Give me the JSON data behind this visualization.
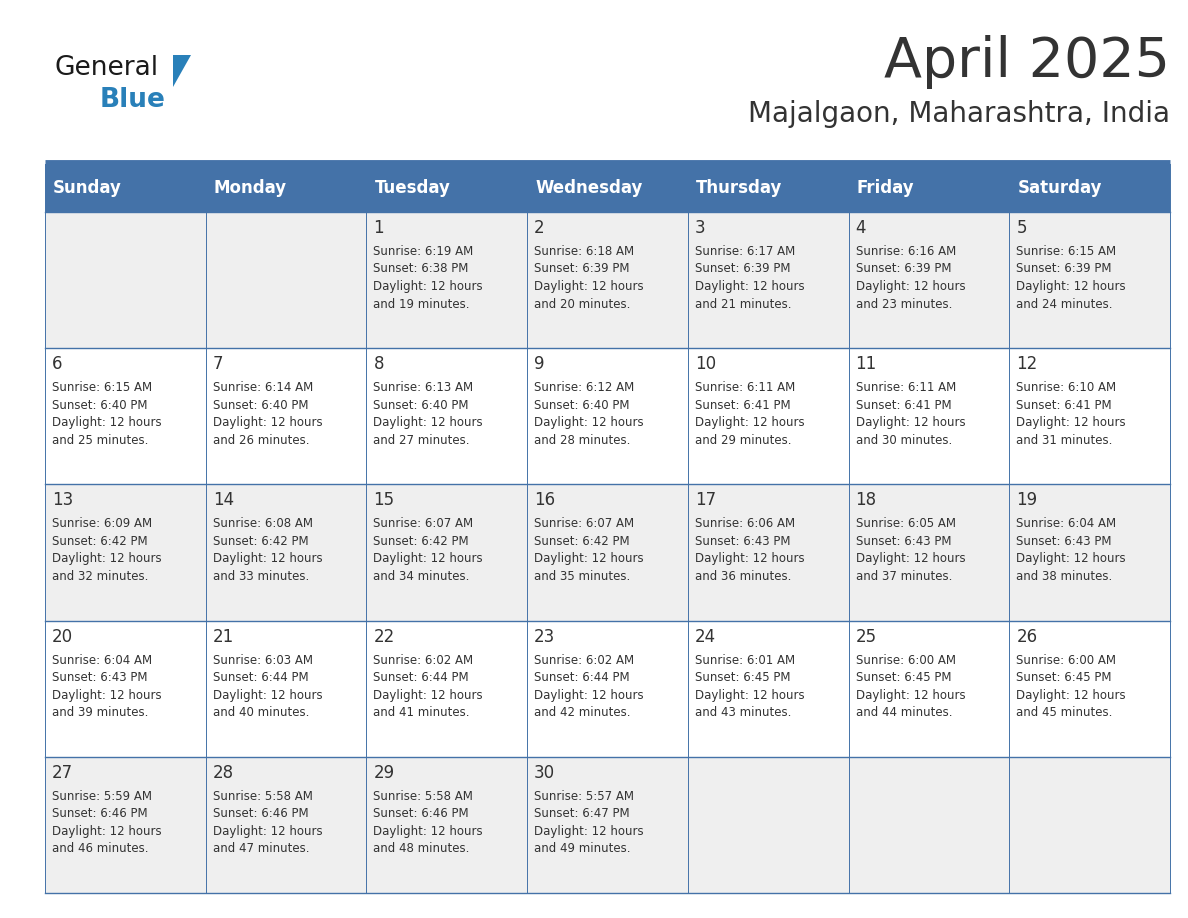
{
  "title": "April 2025",
  "subtitle": "Majalgaon, Maharashtra, India",
  "header_bg": "#4472A8",
  "header_text": "#ffffff",
  "cell_bg_odd": "#efefef",
  "cell_bg_even": "#ffffff",
  "grid_line_color": "#4472A8",
  "text_color": "#333333",
  "days_of_week": [
    "Sunday",
    "Monday",
    "Tuesday",
    "Wednesday",
    "Thursday",
    "Friday",
    "Saturday"
  ],
  "weeks": [
    [
      {
        "day": "",
        "sunrise": "",
        "sunset": "",
        "daylight_min": 0
      },
      {
        "day": "",
        "sunrise": "",
        "sunset": "",
        "daylight_min": 0
      },
      {
        "day": "1",
        "sunrise": "6:19 AM",
        "sunset": "6:38 PM",
        "daylight_min": 19
      },
      {
        "day": "2",
        "sunrise": "6:18 AM",
        "sunset": "6:39 PM",
        "daylight_min": 20
      },
      {
        "day": "3",
        "sunrise": "6:17 AM",
        "sunset": "6:39 PM",
        "daylight_min": 21
      },
      {
        "day": "4",
        "sunrise": "6:16 AM",
        "sunset": "6:39 PM",
        "daylight_min": 23
      },
      {
        "day": "5",
        "sunrise": "6:15 AM",
        "sunset": "6:39 PM",
        "daylight_min": 24
      }
    ],
    [
      {
        "day": "6",
        "sunrise": "6:15 AM",
        "sunset": "6:40 PM",
        "daylight_min": 25
      },
      {
        "day": "7",
        "sunrise": "6:14 AM",
        "sunset": "6:40 PM",
        "daylight_min": 26
      },
      {
        "day": "8",
        "sunrise": "6:13 AM",
        "sunset": "6:40 PM",
        "daylight_min": 27
      },
      {
        "day": "9",
        "sunrise": "6:12 AM",
        "sunset": "6:40 PM",
        "daylight_min": 28
      },
      {
        "day": "10",
        "sunrise": "6:11 AM",
        "sunset": "6:41 PM",
        "daylight_min": 29
      },
      {
        "day": "11",
        "sunrise": "6:11 AM",
        "sunset": "6:41 PM",
        "daylight_min": 30
      },
      {
        "day": "12",
        "sunrise": "6:10 AM",
        "sunset": "6:41 PM",
        "daylight_min": 31
      }
    ],
    [
      {
        "day": "13",
        "sunrise": "6:09 AM",
        "sunset": "6:42 PM",
        "daylight_min": 32
      },
      {
        "day": "14",
        "sunrise": "6:08 AM",
        "sunset": "6:42 PM",
        "daylight_min": 33
      },
      {
        "day": "15",
        "sunrise": "6:07 AM",
        "sunset": "6:42 PM",
        "daylight_min": 34
      },
      {
        "day": "16",
        "sunrise": "6:07 AM",
        "sunset": "6:42 PM",
        "daylight_min": 35
      },
      {
        "day": "17",
        "sunrise": "6:06 AM",
        "sunset": "6:43 PM",
        "daylight_min": 36
      },
      {
        "day": "18",
        "sunrise": "6:05 AM",
        "sunset": "6:43 PM",
        "daylight_min": 37
      },
      {
        "day": "19",
        "sunrise": "6:04 AM",
        "sunset": "6:43 PM",
        "daylight_min": 38
      }
    ],
    [
      {
        "day": "20",
        "sunrise": "6:04 AM",
        "sunset": "6:43 PM",
        "daylight_min": 39
      },
      {
        "day": "21",
        "sunrise": "6:03 AM",
        "sunset": "6:44 PM",
        "daylight_min": 40
      },
      {
        "day": "22",
        "sunrise": "6:02 AM",
        "sunset": "6:44 PM",
        "daylight_min": 41
      },
      {
        "day": "23",
        "sunrise": "6:02 AM",
        "sunset": "6:44 PM",
        "daylight_min": 42
      },
      {
        "day": "24",
        "sunrise": "6:01 AM",
        "sunset": "6:45 PM",
        "daylight_min": 43
      },
      {
        "day": "25",
        "sunrise": "6:00 AM",
        "sunset": "6:45 PM",
        "daylight_min": 44
      },
      {
        "day": "26",
        "sunrise": "6:00 AM",
        "sunset": "6:45 PM",
        "daylight_min": 45
      }
    ],
    [
      {
        "day": "27",
        "sunrise": "5:59 AM",
        "sunset": "6:46 PM",
        "daylight_min": 46
      },
      {
        "day": "28",
        "sunrise": "5:58 AM",
        "sunset": "6:46 PM",
        "daylight_min": 47
      },
      {
        "day": "29",
        "sunrise": "5:58 AM",
        "sunset": "6:46 PM",
        "daylight_min": 48
      },
      {
        "day": "30",
        "sunrise": "5:57 AM",
        "sunset": "6:47 PM",
        "daylight_min": 49
      },
      {
        "day": "",
        "sunrise": "",
        "sunset": "",
        "daylight_min": 0
      },
      {
        "day": "",
        "sunrise": "",
        "sunset": "",
        "daylight_min": 0
      },
      {
        "day": "",
        "sunrise": "",
        "sunset": "",
        "daylight_min": 0
      }
    ]
  ],
  "logo_color_general": "#1a1a1a",
  "logo_color_blue": "#2980b9",
  "logo_triangle_color": "#2980b9",
  "title_fontsize": 40,
  "subtitle_fontsize": 20,
  "header_fontsize": 12,
  "day_num_fontsize": 12,
  "cell_text_fontsize": 8.5
}
